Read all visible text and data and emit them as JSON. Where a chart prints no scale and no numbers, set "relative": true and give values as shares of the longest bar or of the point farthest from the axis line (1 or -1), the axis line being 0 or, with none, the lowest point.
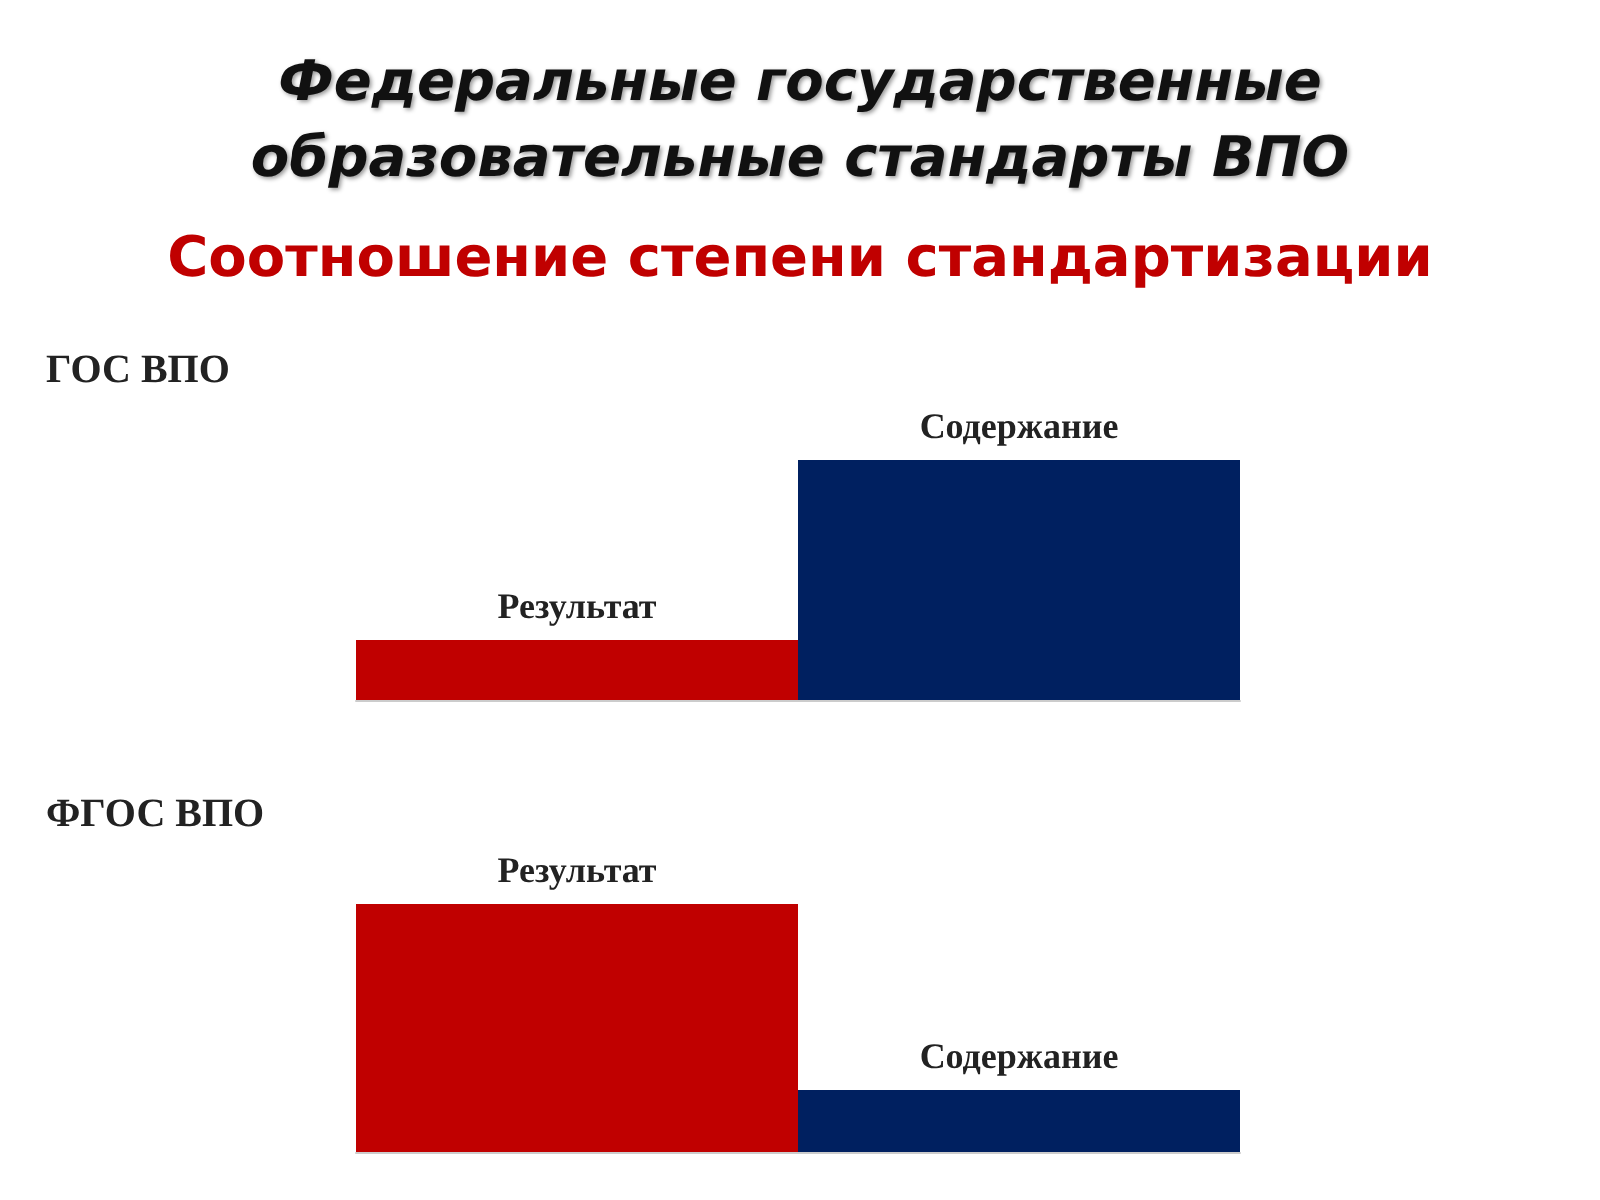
{
  "chart_data": [
    {
      "type": "other",
      "title": "Федеральные государственные образовательные стандарты ВПО",
      "subtitle": "Соотношение степени стандартизации"
    },
    {
      "type": "bar",
      "title": "ГОС ВПО",
      "relative": true,
      "categories": [
        "Результат",
        "Содержание"
      ],
      "values": [
        0.25,
        1
      ],
      "colors": [
        "#c00000",
        "#002060"
      ]
    },
    {
      "type": "bar",
      "title": "ФГОС ВПО",
      "relative": true,
      "categories": [
        "Результат",
        "Содержание"
      ],
      "values": [
        1,
        0.25
      ],
      "colors": [
        "#c00000",
        "#002060"
      ]
    }
  ]
}
